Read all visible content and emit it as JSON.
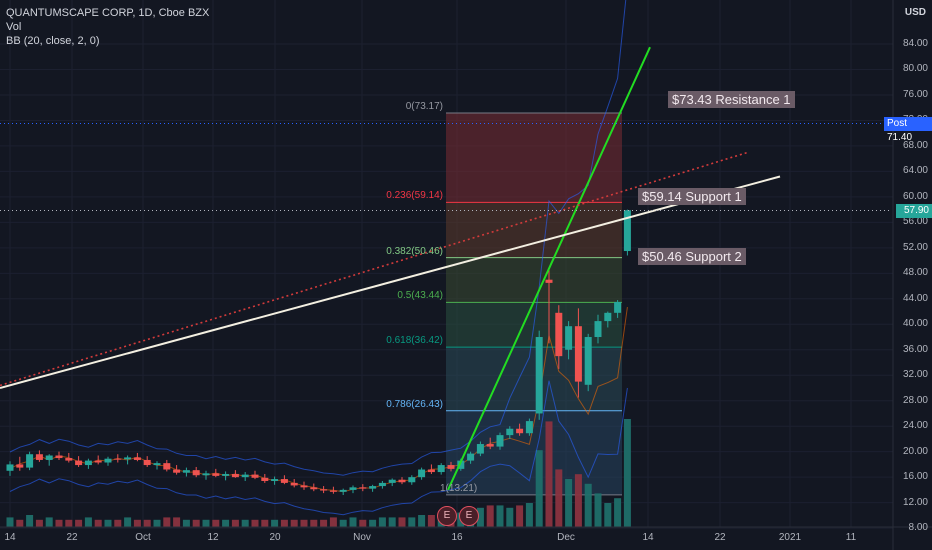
{
  "legend": {
    "symbol": "QUANTUMSCAPE CORP, 1D, Cboe BZX",
    "vol": "Vol",
    "bb": "BB (20, close, 2, 0)"
  },
  "currency": "USD",
  "y_axis_labels": [
    "84.00",
    "80.00",
    "76.00",
    "72.00",
    "68.00",
    "64.00",
    "60.00",
    "56.00",
    "52.00",
    "48.00",
    "44.00",
    "40.00",
    "36.00",
    "32.00",
    "28.00",
    "24.00",
    "20.00",
    "16.00",
    "12.00",
    "8.00"
  ],
  "x_axis_labels": [
    "14",
    "22",
    "Oct",
    "12",
    "20",
    "Nov",
    "16",
    "Dec",
    "14",
    "22",
    "2021",
    "11"
  ],
  "post_tag": {
    "label": "Post",
    "value": "71.40"
  },
  "last_price_tag": "57.90",
  "fib_levels": [
    {
      "label": "0(73.17)",
      "price": 73.17
    },
    {
      "label": "0.236(59.14)",
      "price": 59.14
    },
    {
      "label": "0.382(50.46)",
      "price": 50.46
    },
    {
      "label": "0.5(43.44)",
      "price": 43.44
    },
    {
      "label": "0.618(36.42)",
      "price": 36.42
    },
    {
      "label": "0.786(26.43)",
      "price": 26.43
    },
    {
      "label": "1(13.21)",
      "price": 13.21
    }
  ],
  "annotations": {
    "resistance": "$73.43 Resistance 1",
    "support1": "$59.14 Support 1",
    "support2": "$50.46 Support 2"
  },
  "earnings_markers": [
    "E",
    "E"
  ],
  "colors": {
    "background": "#131722",
    "up": "#26a69a",
    "down": "#ef5350",
    "green_trend": "#22dd22",
    "white_trend": "#f3efe1",
    "red_dotted": "#d33b3b",
    "post_tag": "#2962ff",
    "last_tag": "#26a69a"
  },
  "chart_data": {
    "type": "candlestick",
    "candles": [
      {
        "o": 17.0,
        "h": 18.5,
        "l": 16.2,
        "c": 18.0
      },
      {
        "o": 18.0,
        "h": 19.2,
        "l": 17.0,
        "c": 17.5
      },
      {
        "o": 17.5,
        "h": 20.0,
        "l": 17.1,
        "c": 19.6
      },
      {
        "o": 19.6,
        "h": 20.2,
        "l": 18.4,
        "c": 18.7
      },
      {
        "o": 18.7,
        "h": 19.6,
        "l": 17.8,
        "c": 19.4
      },
      {
        "o": 19.4,
        "h": 20.0,
        "l": 18.7,
        "c": 19.0
      },
      {
        "o": 19.0,
        "h": 19.8,
        "l": 18.3,
        "c": 18.6
      },
      {
        "o": 18.6,
        "h": 19.3,
        "l": 17.6,
        "c": 17.9
      },
      {
        "o": 17.9,
        "h": 18.9,
        "l": 17.3,
        "c": 18.6
      },
      {
        "o": 18.6,
        "h": 19.4,
        "l": 18.0,
        "c": 18.3
      },
      {
        "o": 18.3,
        "h": 19.2,
        "l": 17.8,
        "c": 18.9
      },
      {
        "o": 18.9,
        "h": 19.6,
        "l": 18.3,
        "c": 18.8
      },
      {
        "o": 18.8,
        "h": 19.4,
        "l": 18.0,
        "c": 19.1
      },
      {
        "o": 19.1,
        "h": 19.8,
        "l": 18.5,
        "c": 18.7
      },
      {
        "o": 18.7,
        "h": 19.3,
        "l": 17.6,
        "c": 17.9
      },
      {
        "o": 17.9,
        "h": 18.5,
        "l": 17.2,
        "c": 18.2
      },
      {
        "o": 18.2,
        "h": 18.7,
        "l": 16.9,
        "c": 17.2
      },
      {
        "o": 17.2,
        "h": 17.9,
        "l": 16.4,
        "c": 16.7
      },
      {
        "o": 16.7,
        "h": 17.5,
        "l": 16.1,
        "c": 17.1
      },
      {
        "o": 17.1,
        "h": 17.6,
        "l": 16.0,
        "c": 16.3
      },
      {
        "o": 16.3,
        "h": 17.0,
        "l": 15.6,
        "c": 16.6
      },
      {
        "o": 16.6,
        "h": 17.3,
        "l": 16.0,
        "c": 16.2
      },
      {
        "o": 16.2,
        "h": 16.9,
        "l": 15.5,
        "c": 16.5
      },
      {
        "o": 16.5,
        "h": 17.1,
        "l": 15.9,
        "c": 16.0
      },
      {
        "o": 16.0,
        "h": 16.8,
        "l": 15.4,
        "c": 16.4
      },
      {
        "o": 16.4,
        "h": 17.0,
        "l": 15.7,
        "c": 15.9
      },
      {
        "o": 15.9,
        "h": 16.5,
        "l": 15.1,
        "c": 15.4
      },
      {
        "o": 15.4,
        "h": 16.1,
        "l": 14.8,
        "c": 15.7
      },
      {
        "o": 15.7,
        "h": 16.3,
        "l": 14.9,
        "c": 15.1
      },
      {
        "o": 15.1,
        "h": 15.7,
        "l": 14.4,
        "c": 14.7
      },
      {
        "o": 14.7,
        "h": 15.3,
        "l": 14.0,
        "c": 14.4
      },
      {
        "o": 14.4,
        "h": 15.0,
        "l": 13.8,
        "c": 14.1
      },
      {
        "o": 14.1,
        "h": 14.6,
        "l": 13.5,
        "c": 13.9
      },
      {
        "o": 13.9,
        "h": 14.5,
        "l": 13.4,
        "c": 13.7
      },
      {
        "o": 13.7,
        "h": 14.2,
        "l": 13.2,
        "c": 14.0
      },
      {
        "o": 14.0,
        "h": 14.7,
        "l": 13.5,
        "c": 14.4
      },
      {
        "o": 14.4,
        "h": 14.9,
        "l": 13.8,
        "c": 14.2
      },
      {
        "o": 14.2,
        "h": 14.8,
        "l": 13.7,
        "c": 14.6
      },
      {
        "o": 14.6,
        "h": 15.4,
        "l": 14.2,
        "c": 15.1
      },
      {
        "o": 15.1,
        "h": 15.8,
        "l": 14.6,
        "c": 15.6
      },
      {
        "o": 15.6,
        "h": 16.0,
        "l": 14.9,
        "c": 15.2
      },
      {
        "o": 15.2,
        "h": 16.3,
        "l": 14.8,
        "c": 16.0
      },
      {
        "o": 16.0,
        "h": 17.5,
        "l": 15.6,
        "c": 17.2
      },
      {
        "o": 17.2,
        "h": 18.0,
        "l": 16.5,
        "c": 16.8
      },
      {
        "o": 16.8,
        "h": 18.2,
        "l": 16.4,
        "c": 17.9
      },
      {
        "o": 17.9,
        "h": 18.4,
        "l": 16.9,
        "c": 17.3
      },
      {
        "o": 17.3,
        "h": 18.9,
        "l": 17.0,
        "c": 18.6
      },
      {
        "o": 18.6,
        "h": 20.0,
        "l": 18.1,
        "c": 19.7
      },
      {
        "o": 19.7,
        "h": 21.6,
        "l": 19.3,
        "c": 21.2
      },
      {
        "o": 21.2,
        "h": 22.2,
        "l": 20.4,
        "c": 20.8
      },
      {
        "o": 20.8,
        "h": 23.0,
        "l": 20.3,
        "c": 22.6
      },
      {
        "o": 22.6,
        "h": 24.0,
        "l": 22.0,
        "c": 23.6
      },
      {
        "o": 23.6,
        "h": 24.4,
        "l": 22.5,
        "c": 22.9
      },
      {
        "o": 22.9,
        "h": 25.2,
        "l": 22.5,
        "c": 24.8
      },
      {
        "o": 26.0,
        "h": 39.0,
        "l": 25.0,
        "c": 38.0
      },
      {
        "o": 47.0,
        "h": 48.5,
        "l": 37.0,
        "c": 46.5
      },
      {
        "o": 41.8,
        "h": 43.0,
        "l": 33.0,
        "c": 35.0
      },
      {
        "o": 36.0,
        "h": 40.5,
        "l": 34.5,
        "c": 39.7
      },
      {
        "o": 39.7,
        "h": 42.5,
        "l": 28.5,
        "c": 31.0
      },
      {
        "o": 30.5,
        "h": 38.5,
        "l": 29.5,
        "c": 38.0
      },
      {
        "o": 38.0,
        "h": 41.5,
        "l": 37.0,
        "c": 40.5
      },
      {
        "o": 40.5,
        "h": 42.0,
        "l": 39.5,
        "c": 41.8
      },
      {
        "o": 41.8,
        "h": 43.8,
        "l": 41.0,
        "c": 43.5
      },
      {
        "o": 51.5,
        "h": 58.0,
        "l": 50.8,
        "c": 57.9
      }
    ],
    "volume": [
      4,
      3,
      5,
      3,
      4,
      3,
      3,
      3,
      4,
      3,
      3,
      3,
      4,
      3,
      3,
      3,
      4,
      4,
      3,
      3,
      3,
      3,
      3,
      3,
      3,
      3,
      3,
      3,
      3,
      3,
      3,
      3,
      3,
      4,
      3,
      4,
      3,
      3,
      4,
      4,
      4,
      4,
      5,
      5,
      6,
      5,
      6,
      7,
      8,
      9,
      9,
      8,
      9,
      10,
      32,
      44,
      24,
      20,
      22,
      18,
      14,
      10,
      12,
      45
    ],
    "volume_max": 45,
    "y_axis": {
      "min": 8,
      "max": 84,
      "unit": "USD"
    },
    "x_axis_labels": [
      "14",
      "22",
      "Oct",
      "12",
      "20",
      "Nov",
      "16",
      "Dec",
      "14",
      "22",
      "2021",
      "11"
    ],
    "lines": {
      "green_trend": [
        {
          "x": 0,
          "y": 14.0
        },
        {
          "x": 60,
          "y": 83.5
        }
      ],
      "white_trend": [
        {
          "x": 0,
          "y": 30.0
        },
        {
          "x": 63,
          "y": 63.2
        }
      ],
      "red_dotted": [
        {
          "x": 0,
          "y": 30.4
        },
        {
          "x": 63,
          "y": 67.0
        }
      ]
    },
    "title": "QUANTUMSCAPE CORP, 1D, Cboe BZX"
  }
}
